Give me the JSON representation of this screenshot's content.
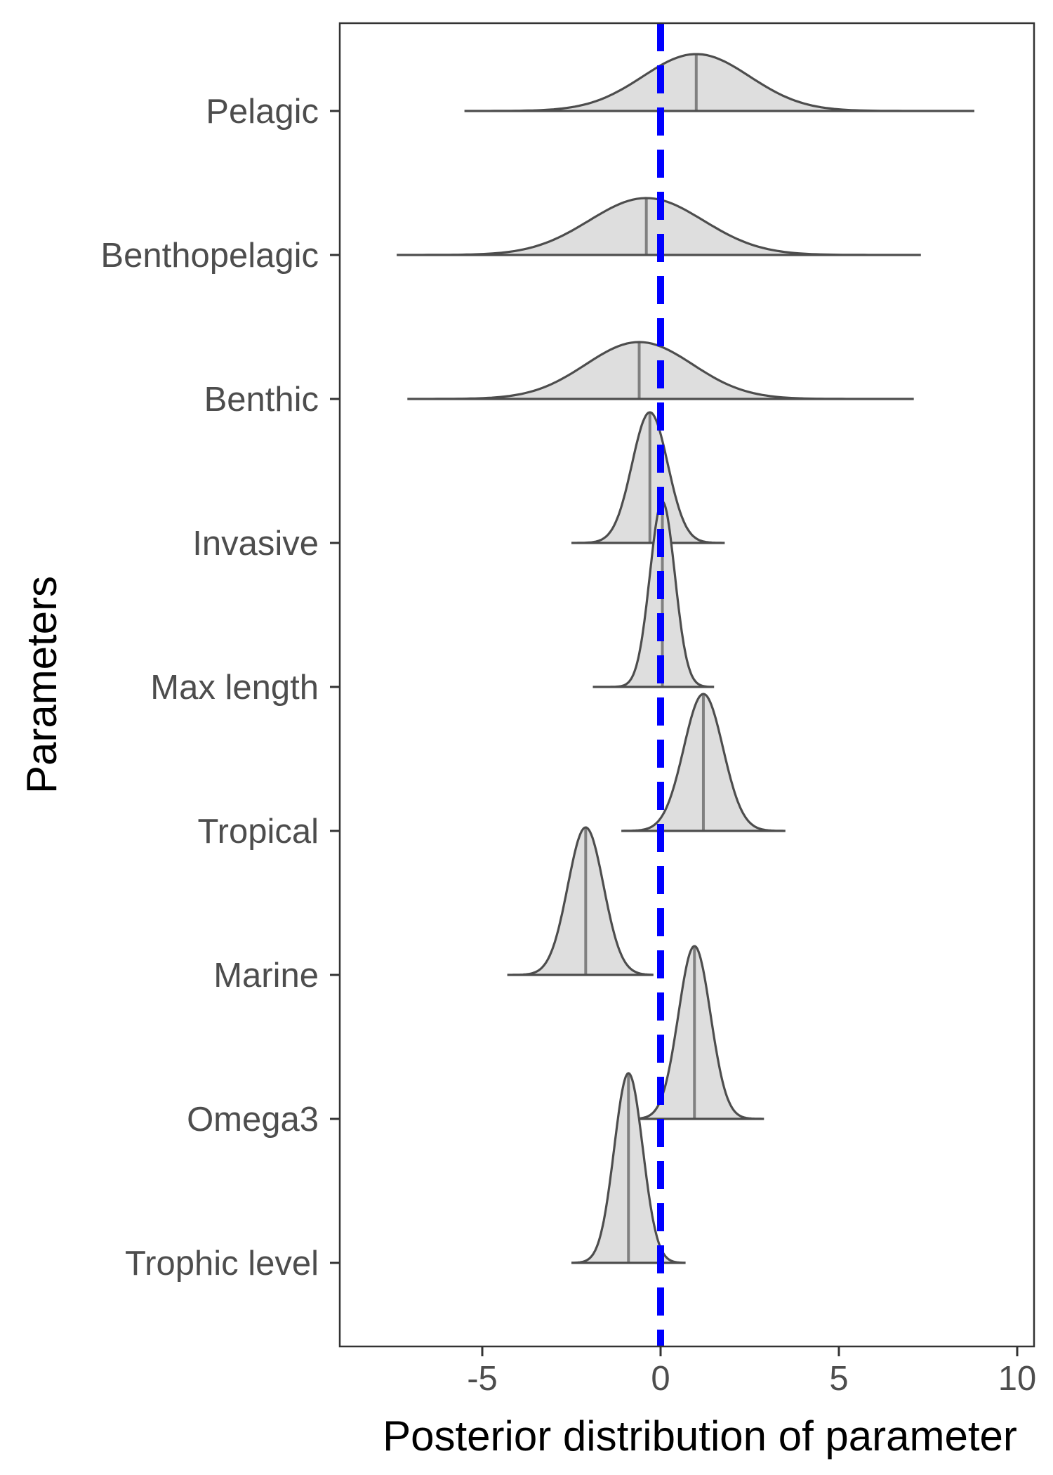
{
  "chart_data": {
    "type": "ridgeline",
    "title": "",
    "xlabel": "Posterior distribution of parameter",
    "ylabel": "Parameters",
    "xlim": [
      -9,
      10.5
    ],
    "xticks": [
      -5,
      0,
      5,
      10
    ],
    "xtick_labels": [
      "-5",
      "0",
      "5",
      "10"
    ],
    "reference_line": {
      "x": 0,
      "style": "dashed",
      "color": "#0000ff"
    },
    "grid": false,
    "legend": "none",
    "fill_color": "#dedede",
    "line_color": "#4d4d4d",
    "median_color": "#808080",
    "series": [
      {
        "name": "Pelagic",
        "median": 1.0,
        "sd": 1.5,
        "min": -5.5,
        "max": 8.8,
        "peak_height": 0.27
      },
      {
        "name": "Benthopelagic",
        "median": -0.4,
        "sd": 1.6,
        "min": -7.4,
        "max": 7.3,
        "peak_height": 0.27
      },
      {
        "name": "Benthic",
        "median": -0.6,
        "sd": 1.5,
        "min": -7.1,
        "max": 7.1,
        "peak_height": 0.27
      },
      {
        "name": "Invasive",
        "median": -0.3,
        "sd": 0.5,
        "min": -2.5,
        "max": 1.8,
        "peak_height": 0.62
      },
      {
        "name": "Max length",
        "median": 0.05,
        "sd": 0.35,
        "min": -1.9,
        "max": 1.5,
        "peak_height": 0.88
      },
      {
        "name": "Tropical",
        "median": 1.2,
        "sd": 0.55,
        "min": -1.1,
        "max": 3.5,
        "peak_height": 0.65
      },
      {
        "name": "Marine",
        "median": -2.1,
        "sd": 0.5,
        "min": -4.3,
        "max": -0.2,
        "peak_height": 0.7
      },
      {
        "name": "Omega3",
        "median": 0.95,
        "sd": 0.45,
        "min": -0.9,
        "max": 2.9,
        "peak_height": 0.82
      },
      {
        "name": "Trophic level",
        "median": -0.9,
        "sd": 0.4,
        "min": -2.5,
        "max": 0.7,
        "peak_height": 0.9
      }
    ]
  }
}
